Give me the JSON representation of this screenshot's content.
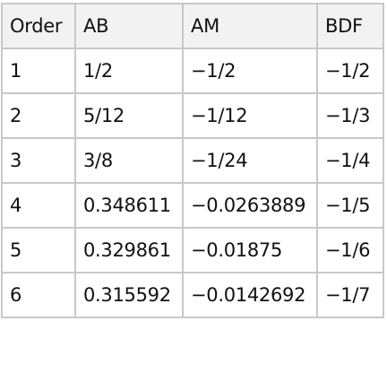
{
  "table": {
    "headers": [
      "Order",
      "AB",
      "AM",
      "BDF"
    ],
    "rows": [
      [
        "1",
        "1/2",
        "−1/2",
        "−1/2"
      ],
      [
        "2",
        "5/12",
        "−1/12",
        "−1/3"
      ],
      [
        "3",
        "3/8",
        "−1/24",
        "−1/4"
      ],
      [
        "4",
        "0.348611",
        "−0.0263889",
        "−1/5"
      ],
      [
        "5",
        "0.329861",
        "−0.01875",
        "−1/6"
      ],
      [
        "6",
        "0.315592",
        "−0.0142692",
        "−1/7"
      ]
    ]
  }
}
